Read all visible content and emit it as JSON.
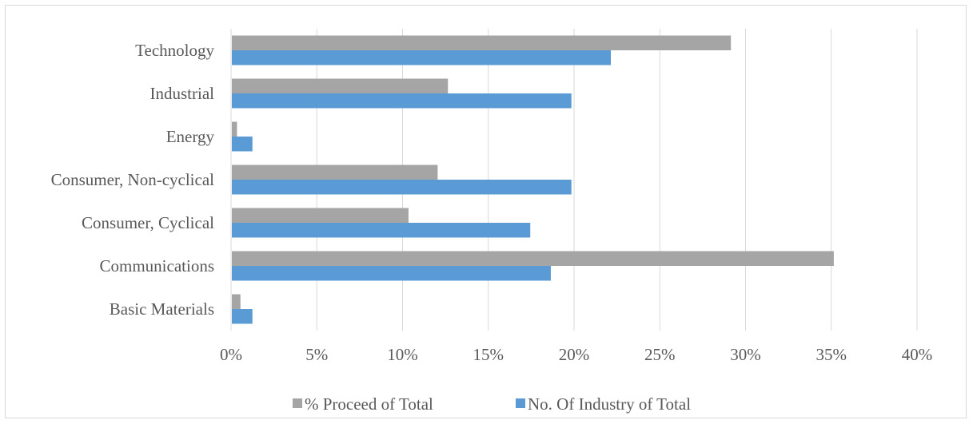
{
  "chart_data": {
    "type": "bar",
    "orientation": "horizontal",
    "categories": [
      "Basic Materials",
      "Communications",
      "Consumer, Cyclical",
      "Consumer, Non-cyclical",
      "Energy",
      "Industrial",
      "Technology"
    ],
    "series": [
      {
        "name": "% Proceed of Total",
        "color": "#a5a5a5",
        "values": [
          0.5,
          35.1,
          10.3,
          12.0,
          0.3,
          12.6,
          29.1
        ]
      },
      {
        "name": "No. Of Industry of Total",
        "color": "#5b9bd5",
        "values": [
          1.2,
          18.6,
          17.4,
          19.8,
          1.2,
          19.8,
          22.1
        ]
      }
    ],
    "xlim": [
      0,
      40
    ],
    "x_ticks": [
      "0%",
      "5%",
      "10%",
      "15%",
      "20%",
      "25%",
      "30%",
      "35%",
      "40%"
    ],
    "x_tick_values": [
      0,
      5,
      10,
      15,
      20,
      25,
      30,
      35,
      40
    ],
    "grid": true,
    "legend_position": "bottom"
  }
}
